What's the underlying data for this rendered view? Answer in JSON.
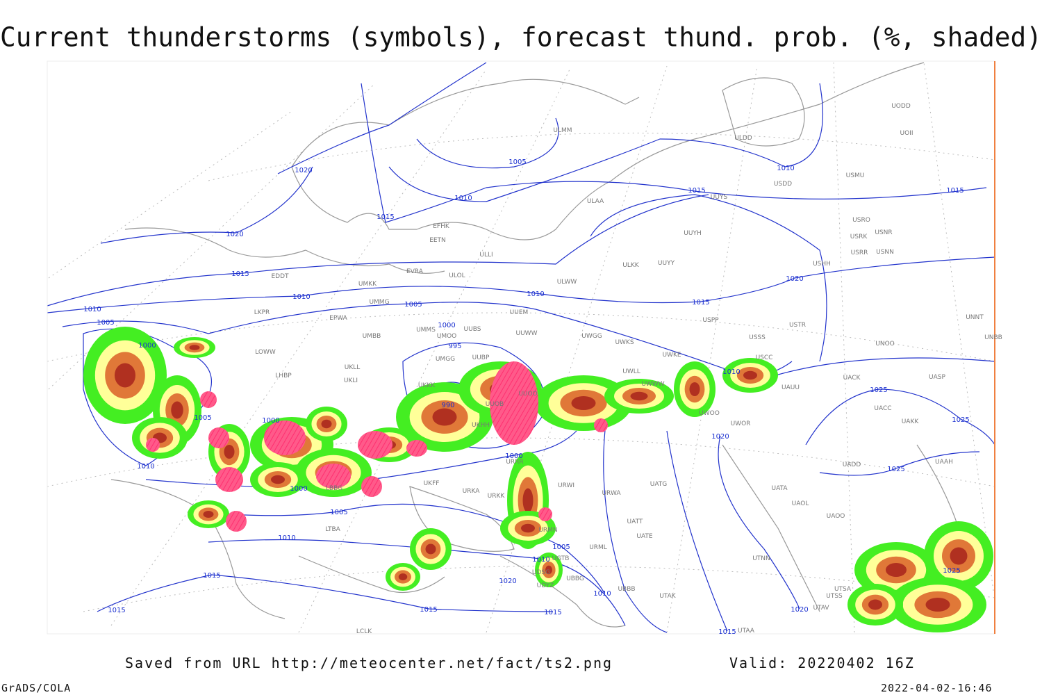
{
  "title": "Current thunderstorms (symbols), forecast thund. prob. (%, shaded)",
  "footer": {
    "saved_from": "Saved from URL http://meteocenter.net/fact/ts2.png",
    "valid": "Valid: 20220402 16Z",
    "software": "GrADS/COLA",
    "timestamp": "2022-04-02-16:46"
  },
  "isobar_labels": [
    "1020",
    "1005",
    "1010",
    "1015",
    "1010",
    "1015",
    "1015",
    "1020",
    "1015",
    "1010",
    "1010",
    "1005",
    "1000",
    "995",
    "1010",
    "1005",
    "1000",
    "1015",
    "1020",
    "1010",
    "1025",
    "1025",
    "1020",
    "1005",
    "1000",
    "990",
    "1010",
    "1000",
    "1000",
    "1005",
    "1010",
    "1005",
    "1010",
    "1020",
    "1025",
    "1025",
    "1015",
    "1015",
    "1015",
    "1015",
    "1010",
    "1020",
    "1015"
  ],
  "station_labels": [
    "ULMM",
    "ULAA",
    "UUYH",
    "ULKK",
    "UUYY",
    "ULWW",
    "UUYS",
    "ULDD",
    "USDD",
    "USMU",
    "UODD",
    "UOII",
    "USRO",
    "USRK",
    "USNR",
    "USRR",
    "USNN",
    "USHH",
    "EFHK",
    "EETN",
    "ULLI",
    "EVRA",
    "ULOL",
    "UMKK",
    "EDDT",
    "UMMG",
    "EPWA",
    "LKPR",
    "UMMS",
    "UUEM",
    "UUWW",
    "UUBS",
    "UMOO",
    "UMBB",
    "LOWW",
    "UKLL",
    "UKLI",
    "LHBP",
    "UMGG",
    "UUBP",
    "UWGG",
    "UWKS",
    "UWKE",
    "UWLL",
    "UWWW",
    "USSS",
    "USCC",
    "USTR",
    "USPP",
    "UNOO",
    "UNNT",
    "UNBB",
    "UACK",
    "UASP",
    "UAUU",
    "UACC",
    "UAKK",
    "UWOO",
    "UWOR",
    "UADD",
    "UAAH",
    "UATG",
    "UATA",
    "UAOL",
    "UAOO",
    "URWI",
    "URWA",
    "UATE",
    "UATT",
    "URML",
    "UTNN",
    "UBBB",
    "UTAK",
    "UTAA",
    "UTSA",
    "UTSS",
    "UTAV",
    "LBBG",
    "LTBA",
    "LCLK",
    "UGTB",
    "UDSG",
    "UBBG",
    "URKK",
    "URRR",
    "UKFF",
    "UKHH",
    "UUOB",
    "UUOO",
    "UKKK",
    "UDYZ",
    "URMN",
    "URKA"
  ]
}
